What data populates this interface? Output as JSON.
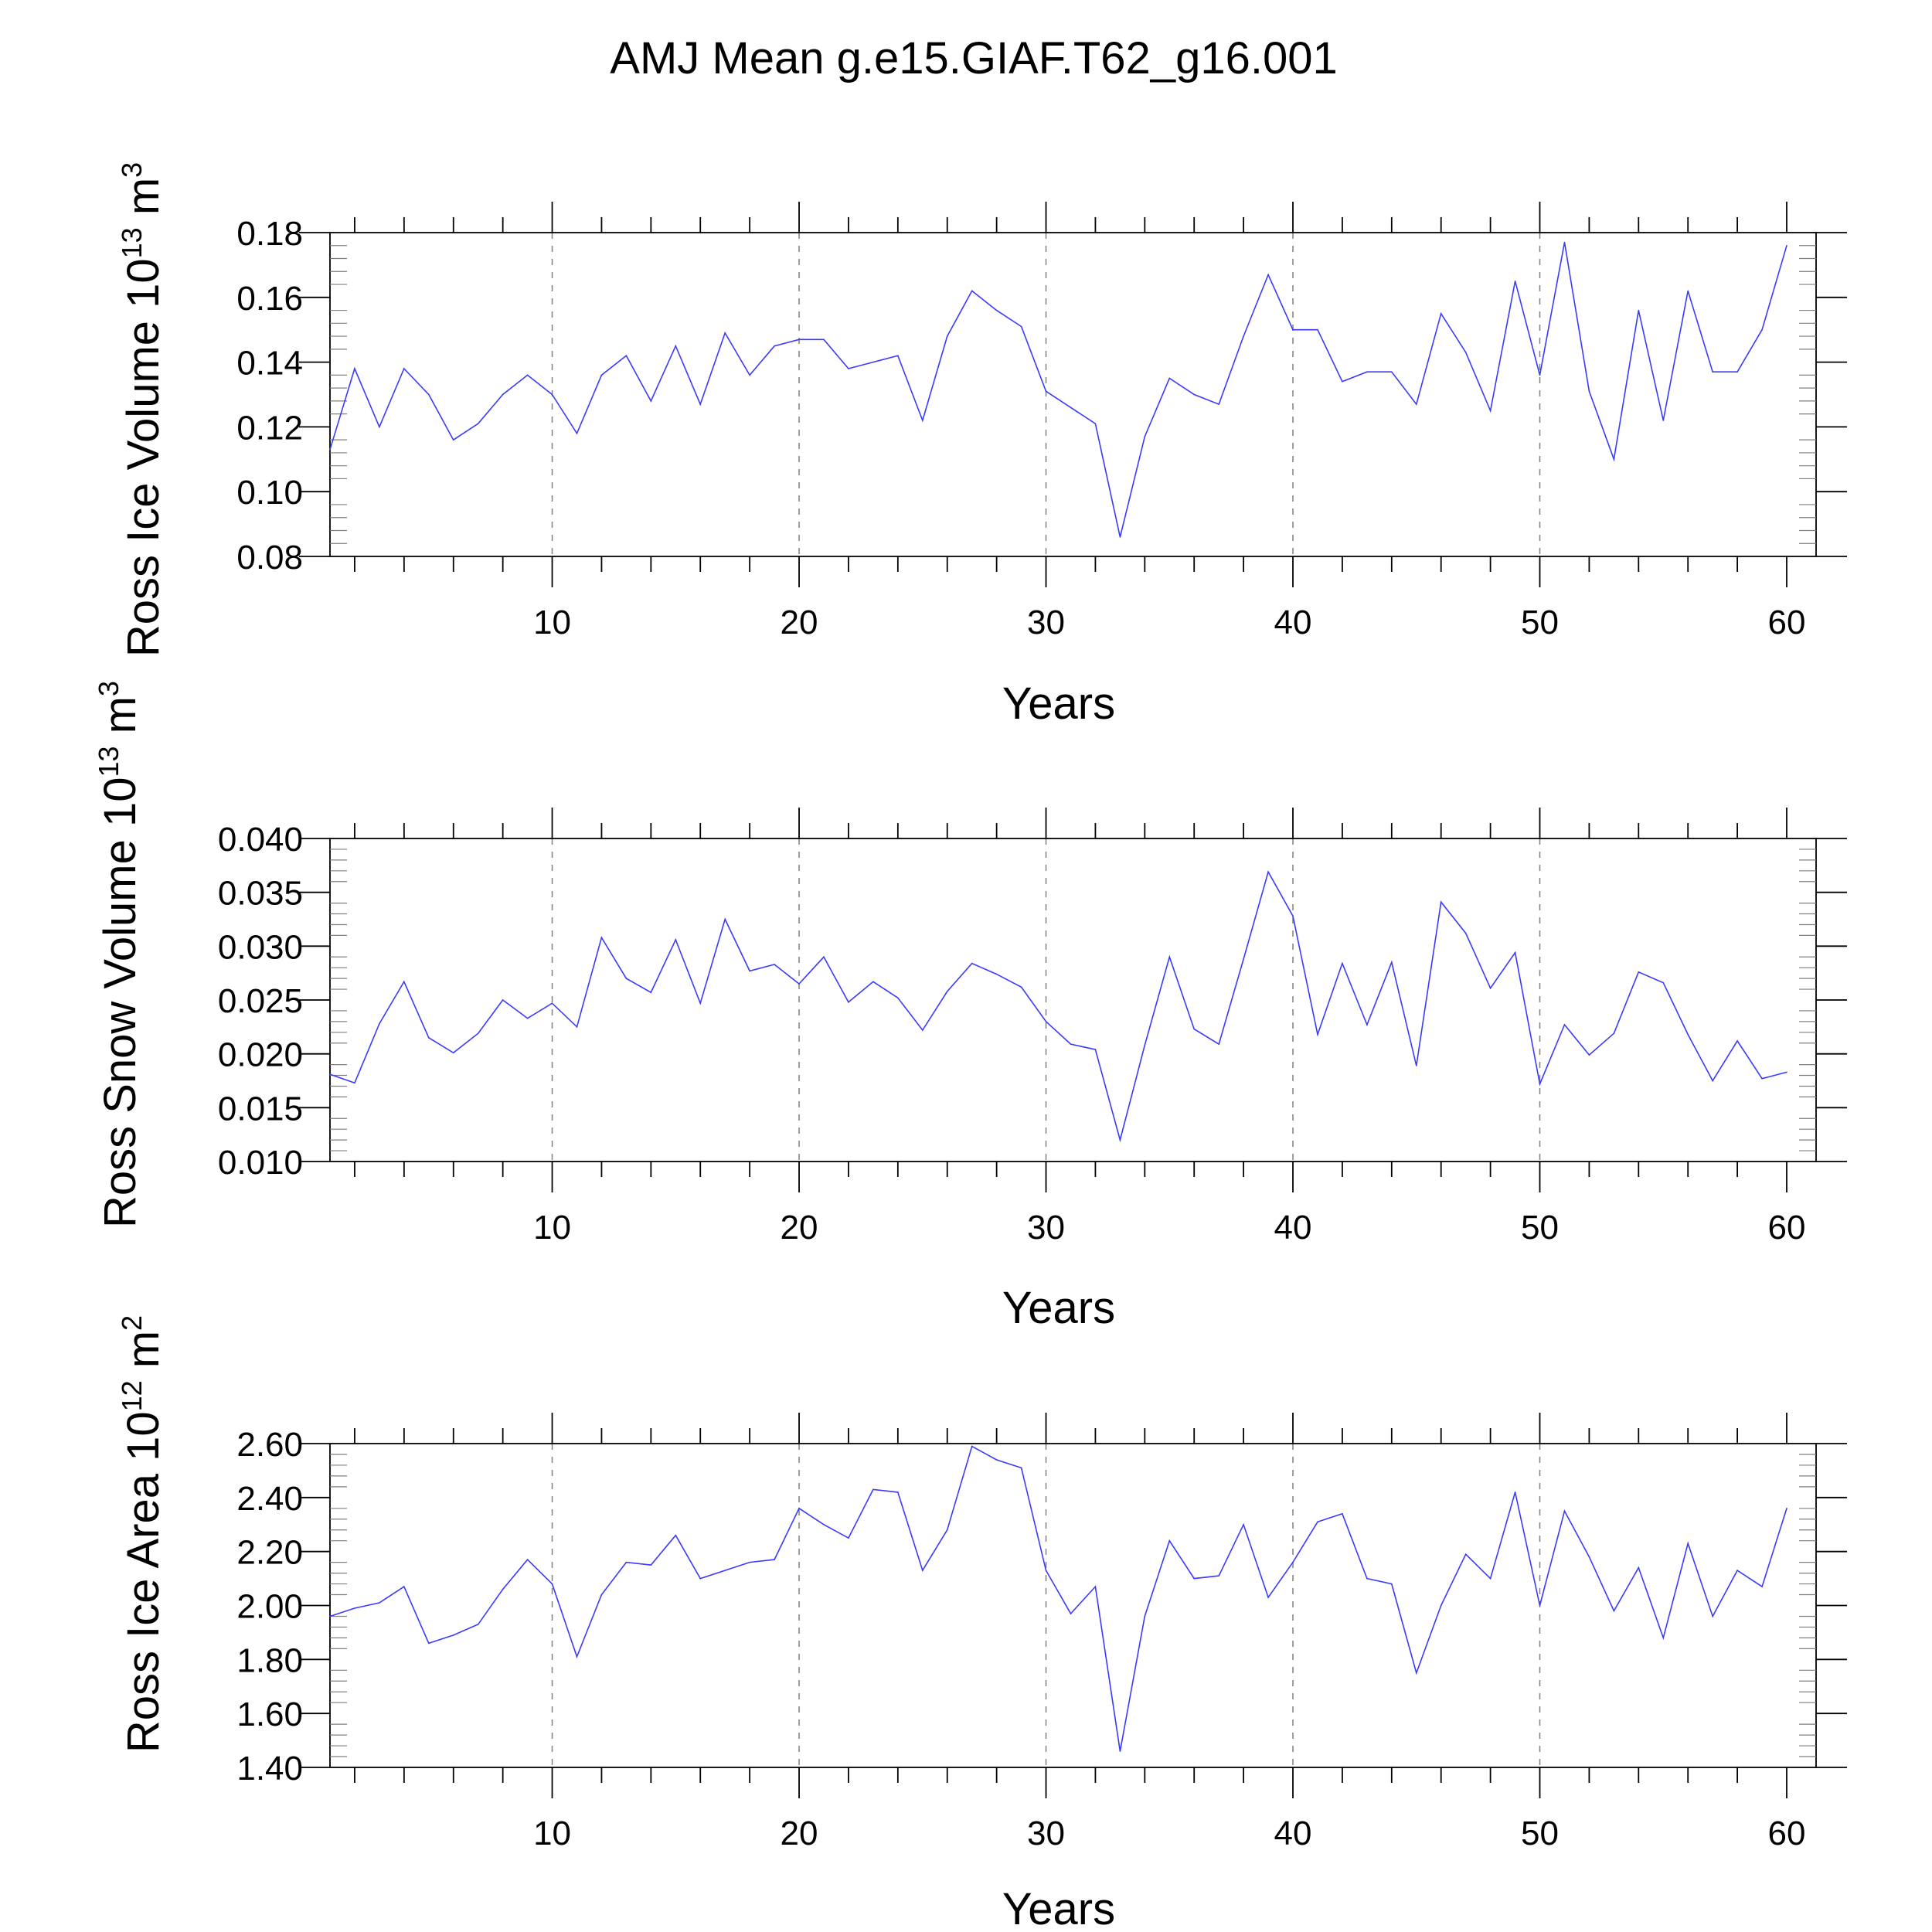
{
  "title": "AMJ Mean g.e15.GIAF.T62_g16.001",
  "colors": {
    "series": "#3a3aff",
    "axis": "#000000",
    "grid": "#7f7f7f"
  },
  "chart_data": [
    {
      "type": "line",
      "ylabel": {
        "main": "Ross Ice Volume 10",
        "exp": "13",
        "unit": " m",
        "unit_exp": "3"
      },
      "xlabel": "Years",
      "xlim": [
        1,
        60
      ],
      "ylim": [
        0.08,
        0.18
      ],
      "yticks": [
        "0.08",
        "0.10",
        "0.12",
        "0.14",
        "0.16",
        "0.18"
      ],
      "xticks": [
        "10",
        "20",
        "30",
        "40",
        "50",
        "60"
      ],
      "x": [
        1,
        2,
        3,
        4,
        5,
        6,
        7,
        8,
        9,
        10,
        11,
        12,
        13,
        14,
        15,
        16,
        17,
        18,
        19,
        20,
        21,
        22,
        23,
        24,
        25,
        26,
        27,
        28,
        29,
        30,
        31,
        32,
        33,
        34,
        35,
        36,
        37,
        38,
        39,
        40,
        41,
        42,
        43,
        44,
        45,
        46,
        47,
        48,
        49,
        50,
        51,
        52,
        53,
        54,
        55,
        56,
        57,
        58,
        59,
        60
      ],
      "values": [
        0.113,
        0.138,
        0.12,
        0.138,
        0.13,
        0.116,
        0.121,
        0.13,
        0.136,
        0.13,
        0.118,
        0.136,
        0.142,
        0.128,
        0.145,
        0.127,
        0.149,
        0.136,
        0.145,
        0.147,
        0.147,
        0.138,
        0.14,
        0.142,
        0.122,
        0.148,
        0.162,
        0.156,
        0.151,
        0.131,
        0.126,
        0.121,
        0.086,
        0.117,
        0.135,
        0.13,
        0.127,
        0.148,
        0.167,
        0.15,
        0.15,
        0.134,
        0.137,
        0.137,
        0.127,
        0.155,
        0.143,
        0.125,
        0.165,
        0.136,
        0.177,
        0.131,
        0.11,
        0.156,
        0.122,
        0.162,
        0.137,
        0.137,
        0.15,
        0.176
      ]
    },
    {
      "type": "line",
      "ylabel": {
        "main": "Ross Snow Volume 10",
        "exp": "13",
        "unit": " m",
        "unit_exp": "3"
      },
      "xlabel": "Years",
      "xlim": [
        1,
        60
      ],
      "ylim": [
        0.01,
        0.04
      ],
      "yticks": [
        "0.010",
        "0.015",
        "0.020",
        "0.025",
        "0.030",
        "0.035",
        "0.040"
      ],
      "xticks": [
        "10",
        "20",
        "30",
        "40",
        "50",
        "60"
      ],
      "x": [
        1,
        2,
        3,
        4,
        5,
        6,
        7,
        8,
        9,
        10,
        11,
        12,
        13,
        14,
        15,
        16,
        17,
        18,
        19,
        20,
        21,
        22,
        23,
        24,
        25,
        26,
        27,
        28,
        29,
        30,
        31,
        32,
        33,
        34,
        35,
        36,
        37,
        38,
        39,
        40,
        41,
        42,
        43,
        44,
        45,
        46,
        47,
        48,
        49,
        50,
        51,
        52,
        53,
        54,
        55,
        56,
        57,
        58,
        59,
        60
      ],
      "values": [
        0.0181,
        0.0173,
        0.0228,
        0.0267,
        0.0215,
        0.0201,
        0.0219,
        0.025,
        0.0233,
        0.0247,
        0.0225,
        0.0308,
        0.027,
        0.0257,
        0.0306,
        0.0247,
        0.0325,
        0.0277,
        0.0283,
        0.0265,
        0.029,
        0.0248,
        0.0267,
        0.0252,
        0.0222,
        0.0258,
        0.0284,
        0.0274,
        0.0262,
        0.023,
        0.0209,
        0.0204,
        0.012,
        0.0208,
        0.029,
        0.0223,
        0.0209,
        0.0288,
        0.0369,
        0.0328,
        0.0218,
        0.0284,
        0.0227,
        0.0285,
        0.0189,
        0.0341,
        0.0312,
        0.0261,
        0.0294,
        0.0172,
        0.0227,
        0.0199,
        0.0219,
        0.0276,
        0.0266,
        0.0218,
        0.0175,
        0.0212,
        0.0177,
        0.0183
      ]
    },
    {
      "type": "line",
      "ylabel": {
        "main": "Ross Ice Area 10",
        "exp": "12",
        "unit": " m",
        "unit_exp": "2"
      },
      "xlabel": "Years",
      "xlim": [
        1,
        60
      ],
      "ylim": [
        1.4,
        2.6
      ],
      "yticks": [
        "1.40",
        "1.60",
        "1.80",
        "2.00",
        "2.20",
        "2.40",
        "2.60"
      ],
      "xticks": [
        "10",
        "20",
        "30",
        "40",
        "50",
        "60"
      ],
      "x": [
        1,
        2,
        3,
        4,
        5,
        6,
        7,
        8,
        9,
        10,
        11,
        12,
        13,
        14,
        15,
        16,
        17,
        18,
        19,
        20,
        21,
        22,
        23,
        24,
        25,
        26,
        27,
        28,
        29,
        30,
        31,
        32,
        33,
        34,
        35,
        36,
        37,
        38,
        39,
        40,
        41,
        42,
        43,
        44,
        45,
        46,
        47,
        48,
        49,
        50,
        51,
        52,
        53,
        54,
        55,
        56,
        57,
        58,
        59,
        60
      ],
      "values": [
        1.96,
        1.99,
        2.01,
        2.07,
        1.86,
        1.89,
        1.93,
        2.06,
        2.17,
        2.08,
        1.81,
        2.04,
        2.16,
        2.15,
        2.26,
        2.1,
        2.13,
        2.16,
        2.17,
        2.36,
        2.3,
        2.25,
        2.43,
        2.42,
        2.13,
        2.28,
        2.59,
        2.54,
        2.51,
        2.13,
        1.97,
        2.07,
        1.46,
        1.96,
        2.24,
        2.1,
        2.11,
        2.3,
        2.03,
        2.16,
        2.31,
        2.34,
        2.1,
        2.08,
        1.75,
        2.0,
        2.19,
        2.1,
        2.42,
        2.0,
        2.35,
        2.18,
        1.98,
        2.14,
        1.88,
        2.23,
        1.96,
        2.13,
        2.07,
        2.36
      ]
    }
  ]
}
